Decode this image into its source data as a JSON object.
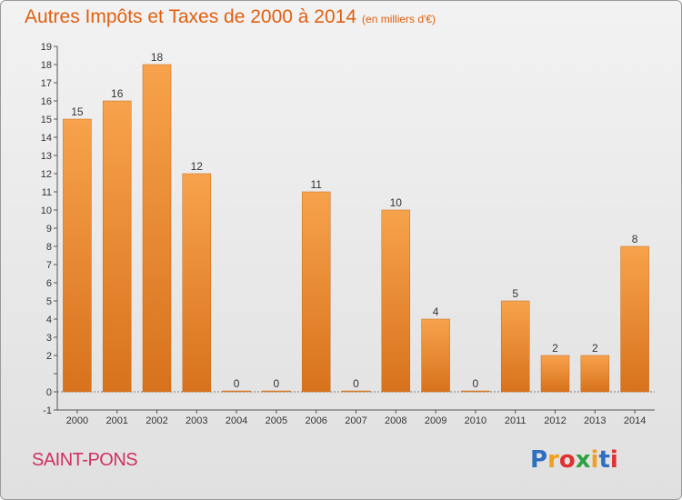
{
  "header": {
    "title": "Autres Impôts et Taxes de 2000 à 2014",
    "unit": "(en milliers d'€)"
  },
  "footer": {
    "place": "SAINT-PONS",
    "logo_letters": [
      "P",
      "r",
      "o",
      "x",
      "i",
      "t",
      "i"
    ],
    "logo_colors": [
      "#2f6fc0",
      "#f0a020",
      "#e03030",
      "#30a040",
      "#f0a020",
      "#2f6fc0",
      "#e03030"
    ]
  },
  "chart_data": {
    "type": "bar",
    "title": "Autres Impôts et Taxes de 2000 à 2014",
    "categories": [
      "2000",
      "2001",
      "2002",
      "2003",
      "2004",
      "2005",
      "2006",
      "2007",
      "2008",
      "2009",
      "2010",
      "2011",
      "2012",
      "2013",
      "2014"
    ],
    "values": [
      15,
      16,
      18,
      12,
      0,
      0,
      11,
      0,
      10,
      4,
      0,
      5,
      2,
      2,
      8
    ],
    "value_labels": [
      "15",
      "16",
      "18",
      "12",
      "0",
      "0",
      "11",
      "0",
      "10",
      "4",
      "0",
      "5",
      "2",
      "2",
      "8"
    ],
    "ylim": [
      -1,
      19
    ],
    "y_ticks": [
      -1,
      0,
      1,
      2,
      3,
      4,
      5,
      6,
      7,
      8,
      9,
      10,
      11,
      12,
      13,
      14,
      15,
      16,
      17,
      18,
      19
    ],
    "y_tick_labels": [
      "-1",
      "0",
      "",
      "2",
      "3",
      "4",
      "5",
      "6",
      "7",
      "8",
      "9",
      "10",
      "11",
      "12",
      "13",
      "14",
      "15",
      "16",
      "17",
      "18",
      "19"
    ],
    "grid": false,
    "bar_color_light": "#f7a24c",
    "bar_color_dark": "#d8721c"
  }
}
